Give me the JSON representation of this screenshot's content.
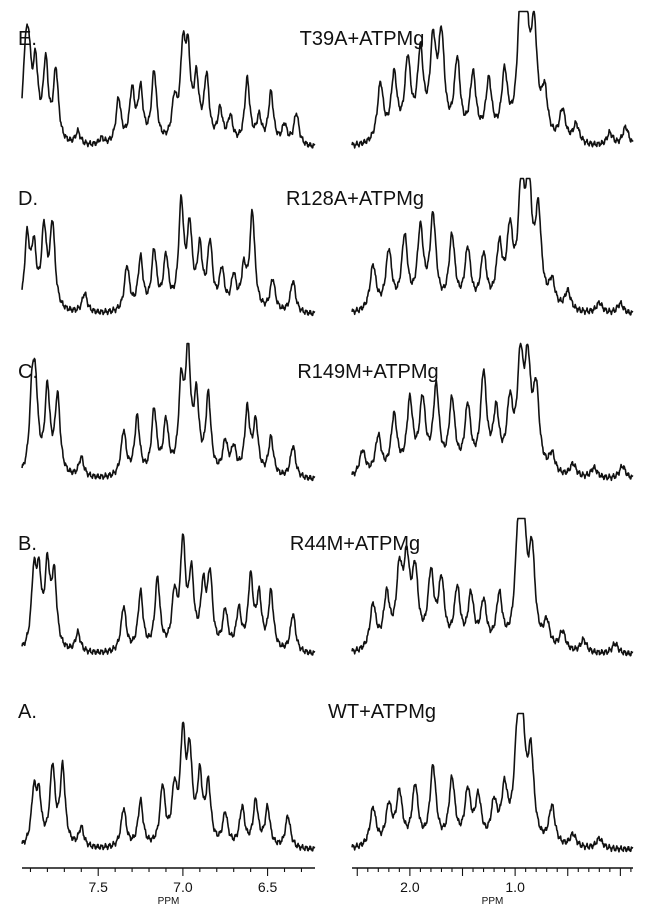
{
  "chart_data": {
    "type": "line",
    "title": "",
    "xlabel": "PPM",
    "x_ticks": {
      "left": [
        "7.5",
        "7.0",
        "6.5"
      ],
      "right": [
        "2.0",
        "1.0"
      ]
    },
    "x_ticks_values": {
      "left": [
        7.5,
        7.0,
        6.5
      ],
      "right": [
        2.0,
        1.0
      ]
    },
    "axis_units": [
      "PPM",
      "PPM"
    ],
    "xlim": {
      "left": [
        7.95,
        6.22
      ],
      "right": [
        2.55,
        -0.12
      ]
    },
    "x_reversed": true,
    "y_ticks": false,
    "grid": false,
    "panels": [
      {
        "label": "E.",
        "sample": "T39A+ATPMg",
        "left_peaks": [
          [
            7.93,
            0.55
          ],
          [
            7.91,
            0.55
          ],
          [
            7.87,
            0.55
          ],
          [
            7.81,
            0.6
          ],
          [
            7.75,
            0.55
          ],
          [
            7.62,
            0.1
          ],
          [
            7.48,
            0.05
          ],
          [
            7.38,
            0.35
          ],
          [
            7.3,
            0.4
          ],
          [
            7.25,
            0.4
          ],
          [
            7.17,
            0.55
          ],
          [
            7.05,
            0.3
          ],
          [
            7.0,
            0.65
          ],
          [
            6.97,
            0.6
          ],
          [
            6.92,
            0.45
          ],
          [
            6.86,
            0.5
          ],
          [
            6.78,
            0.25
          ],
          [
            6.72,
            0.2
          ],
          [
            6.62,
            0.5
          ],
          [
            6.55,
            0.2
          ],
          [
            6.48,
            0.4
          ],
          [
            6.4,
            0.15
          ],
          [
            6.33,
            0.25
          ]
        ],
        "right_peaks": [
          [
            2.28,
            0.45
          ],
          [
            2.15,
            0.5
          ],
          [
            2.02,
            0.6
          ],
          [
            1.9,
            0.65
          ],
          [
            1.78,
            0.7
          ],
          [
            1.7,
            0.75
          ],
          [
            1.55,
            0.6
          ],
          [
            1.4,
            0.5
          ],
          [
            1.25,
            0.45
          ],
          [
            1.1,
            0.5
          ],
          [
            0.95,
            0.85
          ],
          [
            0.9,
            0.9
          ],
          [
            0.82,
            0.8
          ],
          [
            0.72,
            0.35
          ],
          [
            0.55,
            0.25
          ],
          [
            0.42,
            0.15
          ],
          [
            0.1,
            0.1
          ],
          [
            -0.05,
            0.15
          ]
        ]
      },
      {
        "label": "D.",
        "sample": "R128A+ATPMg",
        "left_peaks": [
          [
            7.92,
            0.55
          ],
          [
            7.88,
            0.45
          ],
          [
            7.82,
            0.6
          ],
          [
            7.77,
            0.65
          ],
          [
            7.58,
            0.15
          ],
          [
            7.33,
            0.35
          ],
          [
            7.25,
            0.4
          ],
          [
            7.17,
            0.45
          ],
          [
            7.1,
            0.4
          ],
          [
            7.01,
            0.8
          ],
          [
            6.96,
            0.6
          ],
          [
            6.9,
            0.45
          ],
          [
            6.84,
            0.5
          ],
          [
            6.77,
            0.3
          ],
          [
            6.7,
            0.25
          ],
          [
            6.64,
            0.3
          ],
          [
            6.59,
            0.75
          ],
          [
            6.47,
            0.25
          ],
          [
            6.35,
            0.25
          ]
        ],
        "right_peaks": [
          [
            2.35,
            0.35
          ],
          [
            2.2,
            0.45
          ],
          [
            2.05,
            0.55
          ],
          [
            1.9,
            0.6
          ],
          [
            1.78,
            0.7
          ],
          [
            1.6,
            0.55
          ],
          [
            1.45,
            0.45
          ],
          [
            1.3,
            0.4
          ],
          [
            1.15,
            0.45
          ],
          [
            1.05,
            0.55
          ],
          [
            0.94,
            0.9
          ],
          [
            0.87,
            0.85
          ],
          [
            0.78,
            0.7
          ],
          [
            0.65,
            0.2
          ],
          [
            0.5,
            0.15
          ],
          [
            0.2,
            0.08
          ],
          [
            0.0,
            0.08
          ]
        ]
      },
      {
        "label": "C.",
        "sample": "R149M+ATPMg",
        "left_peaks": [
          [
            7.89,
            0.6
          ],
          [
            7.87,
            0.55
          ],
          [
            7.8,
            0.65
          ],
          [
            7.74,
            0.6
          ],
          [
            7.6,
            0.15
          ],
          [
            7.35,
            0.35
          ],
          [
            7.27,
            0.45
          ],
          [
            7.17,
            0.5
          ],
          [
            7.1,
            0.4
          ],
          [
            7.01,
            0.65
          ],
          [
            6.97,
            0.9
          ],
          [
            6.92,
            0.55
          ],
          [
            6.85,
            0.6
          ],
          [
            6.75,
            0.25
          ],
          [
            6.7,
            0.2
          ],
          [
            6.62,
            0.5
          ],
          [
            6.57,
            0.4
          ],
          [
            6.48,
            0.3
          ],
          [
            6.35,
            0.25
          ]
        ],
        "right_peaks": [
          [
            2.45,
            0.2
          ],
          [
            2.3,
            0.3
          ],
          [
            2.15,
            0.45
          ],
          [
            2.0,
            0.55
          ],
          [
            1.88,
            0.55
          ],
          [
            1.75,
            0.65
          ],
          [
            1.6,
            0.55
          ],
          [
            1.45,
            0.5
          ],
          [
            1.3,
            0.75
          ],
          [
            1.18,
            0.45
          ],
          [
            1.05,
            0.5
          ],
          [
            0.95,
            0.8
          ],
          [
            0.88,
            0.75
          ],
          [
            0.8,
            0.6
          ],
          [
            0.65,
            0.15
          ],
          [
            0.45,
            0.1
          ],
          [
            0.25,
            0.08
          ],
          [
            -0.02,
            0.1
          ]
        ]
      },
      {
        "label": "B.",
        "sample": "R44M+ATPMg",
        "left_peaks": [
          [
            7.88,
            0.55
          ],
          [
            7.85,
            0.5
          ],
          [
            7.8,
            0.6
          ],
          [
            7.76,
            0.55
          ],
          [
            7.62,
            0.15
          ],
          [
            7.35,
            0.35
          ],
          [
            7.25,
            0.45
          ],
          [
            7.15,
            0.55
          ],
          [
            7.05,
            0.4
          ],
          [
            7.0,
            0.8
          ],
          [
            6.95,
            0.55
          ],
          [
            6.88,
            0.45
          ],
          [
            6.84,
            0.55
          ],
          [
            6.75,
            0.3
          ],
          [
            6.67,
            0.3
          ],
          [
            6.6,
            0.55
          ],
          [
            6.55,
            0.4
          ],
          [
            6.48,
            0.45
          ],
          [
            6.35,
            0.3
          ]
        ],
        "right_peaks": [
          [
            2.35,
            0.35
          ],
          [
            2.22,
            0.4
          ],
          [
            2.1,
            0.55
          ],
          [
            2.03,
            0.6
          ],
          [
            1.95,
            0.55
          ],
          [
            1.8,
            0.55
          ],
          [
            1.7,
            0.5
          ],
          [
            1.55,
            0.45
          ],
          [
            1.42,
            0.4
          ],
          [
            1.3,
            0.35
          ],
          [
            1.15,
            0.4
          ],
          [
            0.97,
            0.8
          ],
          [
            0.92,
            0.8
          ],
          [
            0.84,
            0.7
          ],
          [
            0.7,
            0.2
          ],
          [
            0.55,
            0.15
          ],
          [
            0.35,
            0.1
          ],
          [
            0.05,
            0.08
          ]
        ]
      },
      {
        "label": "A.",
        "sample": "WT+ATPMg",
        "left_peaks": [
          [
            7.88,
            0.4
          ],
          [
            7.85,
            0.35
          ],
          [
            7.77,
            0.6
          ],
          [
            7.71,
            0.6
          ],
          [
            7.6,
            0.15
          ],
          [
            7.35,
            0.3
          ],
          [
            7.25,
            0.35
          ],
          [
            7.12,
            0.45
          ],
          [
            7.05,
            0.4
          ],
          [
            7.0,
            0.8
          ],
          [
            6.96,
            0.65
          ],
          [
            6.9,
            0.5
          ],
          [
            6.85,
            0.45
          ],
          [
            6.75,
            0.25
          ],
          [
            6.65,
            0.3
          ],
          [
            6.57,
            0.35
          ],
          [
            6.5,
            0.3
          ],
          [
            6.38,
            0.25
          ]
        ],
        "right_peaks": [
          [
            2.35,
            0.3
          ],
          [
            2.2,
            0.3
          ],
          [
            2.1,
            0.4
          ],
          [
            1.95,
            0.45
          ],
          [
            1.78,
            0.6
          ],
          [
            1.6,
            0.5
          ],
          [
            1.45,
            0.4
          ],
          [
            1.35,
            0.35
          ],
          [
            1.2,
            0.3
          ],
          [
            1.1,
            0.4
          ],
          [
            0.98,
            0.7
          ],
          [
            0.93,
            0.75
          ],
          [
            0.85,
            0.65
          ],
          [
            0.65,
            0.3
          ],
          [
            0.45,
            0.1
          ],
          [
            0.2,
            0.08
          ]
        ]
      }
    ]
  }
}
